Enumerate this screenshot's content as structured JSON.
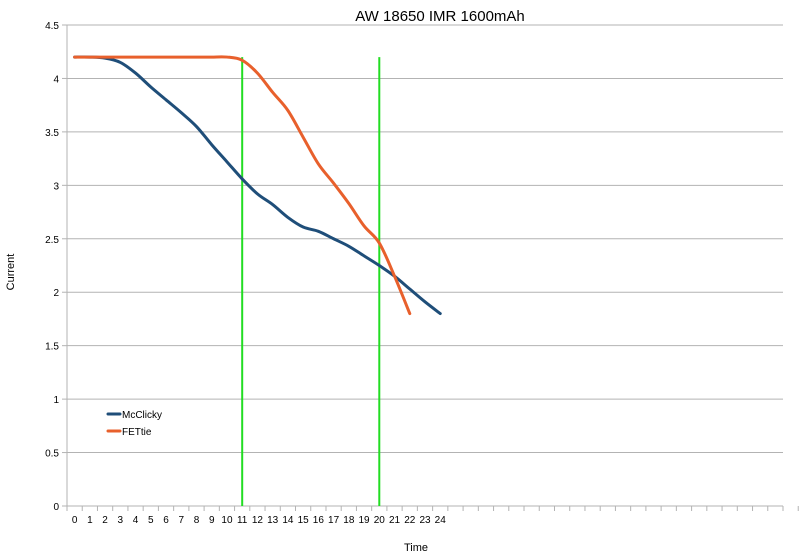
{
  "chart_data": {
    "type": "line",
    "title": "AW 18650 IMR 1600mAh",
    "xlabel": "Time",
    "ylabel": "Current",
    "x_ticks": [
      "0",
      "1",
      "2",
      "3",
      "4",
      "5",
      "6",
      "7",
      "8",
      "9",
      "10",
      "11",
      "12",
      "13",
      "14",
      "15",
      "16",
      "17",
      "18",
      "19",
      "20",
      "21",
      "22",
      "23",
      "24"
    ],
    "y_ticks": [
      "0",
      "0.5",
      "1",
      "1.5",
      "2",
      "2.5",
      "3",
      "3.5",
      "4",
      "4.5"
    ],
    "xlim": [
      0,
      47
    ],
    "ylim": [
      0,
      4.5
    ],
    "grid": "horizontal",
    "legend_position": "bottom-left",
    "series": [
      {
        "name": "McClicky",
        "color": "#1f4e79",
        "x": [
          0,
          1,
          2,
          3,
          4,
          5,
          6,
          7,
          8,
          9,
          10,
          11,
          12,
          13,
          14,
          15,
          16,
          17,
          18,
          19,
          20,
          21,
          22,
          23,
          24
        ],
        "values": [
          4.2,
          4.2,
          4.19,
          4.15,
          4.05,
          3.92,
          3.8,
          3.68,
          3.55,
          3.38,
          3.22,
          3.06,
          2.92,
          2.82,
          2.7,
          2.61,
          2.57,
          2.5,
          2.43,
          2.34,
          2.25,
          2.15,
          2.03,
          1.91,
          1.8
        ]
      },
      {
        "name": "FETtie",
        "color": "#e8602c",
        "x": [
          0,
          1,
          2,
          3,
          4,
          5,
          6,
          7,
          8,
          9,
          10,
          11,
          12,
          13,
          14,
          15,
          16,
          17,
          18,
          19,
          20,
          21,
          22
        ],
        "values": [
          4.2,
          4.2,
          4.2,
          4.2,
          4.2,
          4.2,
          4.2,
          4.2,
          4.2,
          4.2,
          4.2,
          4.17,
          4.05,
          3.87,
          3.7,
          3.45,
          3.2,
          3.02,
          2.83,
          2.62,
          2.46,
          2.15,
          1.8
        ]
      }
    ],
    "markers": [
      {
        "x": 11,
        "color": "#22dd22"
      },
      {
        "x": 20,
        "color": "#22dd22"
      }
    ]
  }
}
